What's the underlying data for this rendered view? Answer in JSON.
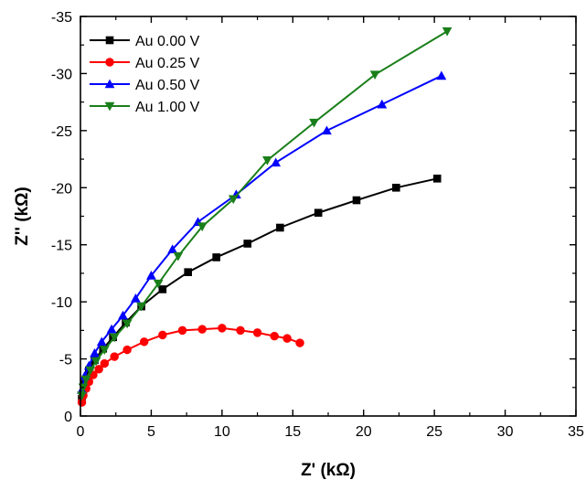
{
  "chart_data": {
    "type": "line",
    "xlabel": "Z' (kΩ)",
    "ylabel": "Z'' (kΩ)",
    "xlim": [
      0,
      35
    ],
    "ylim": [
      0,
      -35
    ],
    "x_ticks": [
      0,
      5,
      10,
      15,
      20,
      25,
      30,
      35
    ],
    "y_ticks": [
      0,
      -5,
      -10,
      -15,
      -20,
      -25,
      -30,
      -35
    ],
    "x_tick_labels": [
      "0",
      "5",
      "10",
      "15",
      "20",
      "25",
      "30",
      "35"
    ],
    "y_tick_labels": [
      "0",
      "-5",
      "-10",
      "-15",
      "-20",
      "-25",
      "-30",
      "-35"
    ],
    "grid": false,
    "legend_position": "top-left",
    "series": [
      {
        "name": "Au 0.00 V",
        "color": "#000000",
        "marker": "square",
        "x": [
          0.1,
          0.3,
          0.6,
          1.0,
          1.6,
          2.3,
          3.2,
          4.3,
          5.8,
          7.6,
          9.6,
          11.8,
          14.1,
          16.8,
          19.5,
          22.3,
          25.2
        ],
        "y": [
          -1.5,
          -2.8,
          -4.0,
          -4.9,
          -5.9,
          -6.9,
          -8.2,
          -9.6,
          -11.1,
          -12.6,
          -13.9,
          -15.1,
          -16.5,
          -17.8,
          -18.9,
          -20.0,
          -20.8
        ]
      },
      {
        "name": "Au 0.25 V",
        "color": "#ff0000",
        "marker": "circle",
        "x": [
          0.1,
          0.2,
          0.4,
          0.6,
          0.9,
          1.3,
          1.7,
          2.4,
          3.3,
          4.5,
          5.8,
          7.2,
          8.6,
          10.0,
          11.3,
          12.5,
          13.7,
          14.6,
          15.5
        ],
        "y": [
          -1.2,
          -1.8,
          -2.4,
          -3.0,
          -3.6,
          -4.1,
          -4.6,
          -5.2,
          -5.8,
          -6.5,
          -7.1,
          -7.5,
          -7.6,
          -7.7,
          -7.5,
          -7.3,
          -7.0,
          -6.8,
          -6.4
        ]
      },
      {
        "name": "Au 0.50 V",
        "color": "#0000ff",
        "marker": "triangle-up",
        "x": [
          0.1,
          0.3,
          0.6,
          1.0,
          1.5,
          2.2,
          3.0,
          3.9,
          5.0,
          6.5,
          8.3,
          11.0,
          13.8,
          17.4,
          21.3,
          25.5
        ],
        "y": [
          -2.3,
          -3.5,
          -4.4,
          -5.5,
          -6.5,
          -7.6,
          -8.8,
          -10.3,
          -12.3,
          -14.6,
          -17.0,
          -19.4,
          -22.2,
          -25.0,
          -27.3,
          -29.8
        ]
      },
      {
        "name": "Au 1.00 V",
        "color": "#1a7f1a",
        "marker": "triangle-down",
        "x": [
          0.1,
          0.2,
          0.4,
          0.7,
          1.1,
          1.7,
          2.4,
          3.3,
          4.3,
          5.5,
          6.9,
          8.6,
          10.8,
          13.2,
          16.5,
          20.8,
          25.9
        ],
        "y": [
          -1.8,
          -2.5,
          -3.2,
          -4.0,
          -4.8,
          -5.8,
          -6.9,
          -8.1,
          -9.6,
          -11.6,
          -14.0,
          -16.6,
          -19.0,
          -22.4,
          -25.7,
          -29.9,
          -33.7
        ]
      }
    ]
  }
}
